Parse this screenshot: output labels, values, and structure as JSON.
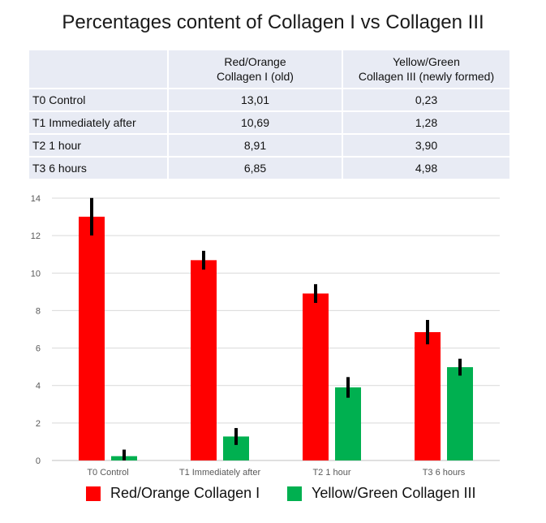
{
  "title": "Percentages content of Collagen I vs Collagen III",
  "table": {
    "header_col1": [
      "Red/Orange",
      "Collagen I (old)"
    ],
    "header_col2": [
      "Yellow/Green",
      "Collagen III (newly formed)"
    ],
    "rows": [
      {
        "label": "T0 Control",
        "c1": "13,01",
        "c2": "0,23"
      },
      {
        "label": "T1 Immediately after",
        "c1": "10,69",
        "c2": "1,28"
      },
      {
        "label": "T2 1 hour",
        "c1": "8,91",
        "c2": "3,90"
      },
      {
        "label": "T3 6 hours",
        "c1": "6,85",
        "c2": "4,98"
      }
    ]
  },
  "chart_data": {
    "type": "bar",
    "categories": [
      "T0 Control",
      "T1 Immediately after",
      "T2 1 hour",
      "T3 6 hours"
    ],
    "series": [
      {
        "name": "Red/Orange Collagen I",
        "color": "#ff0000",
        "values": [
          13.01,
          10.69,
          8.91,
          6.85
        ],
        "errors": [
          1.0,
          0.5,
          0.5,
          0.65
        ]
      },
      {
        "name": "Yellow/Green Collagen III",
        "color": "#00b050",
        "values": [
          0.23,
          1.28,
          3.9,
          4.98
        ],
        "errors": [
          0.35,
          0.45,
          0.55,
          0.45
        ]
      }
    ],
    "ylim": [
      0,
      14
    ],
    "yticks": [
      0,
      2,
      4,
      6,
      8,
      10,
      12,
      14
    ],
    "grid": true,
    "legend": "bottom",
    "xlabel": "",
    "ylabel": ""
  }
}
